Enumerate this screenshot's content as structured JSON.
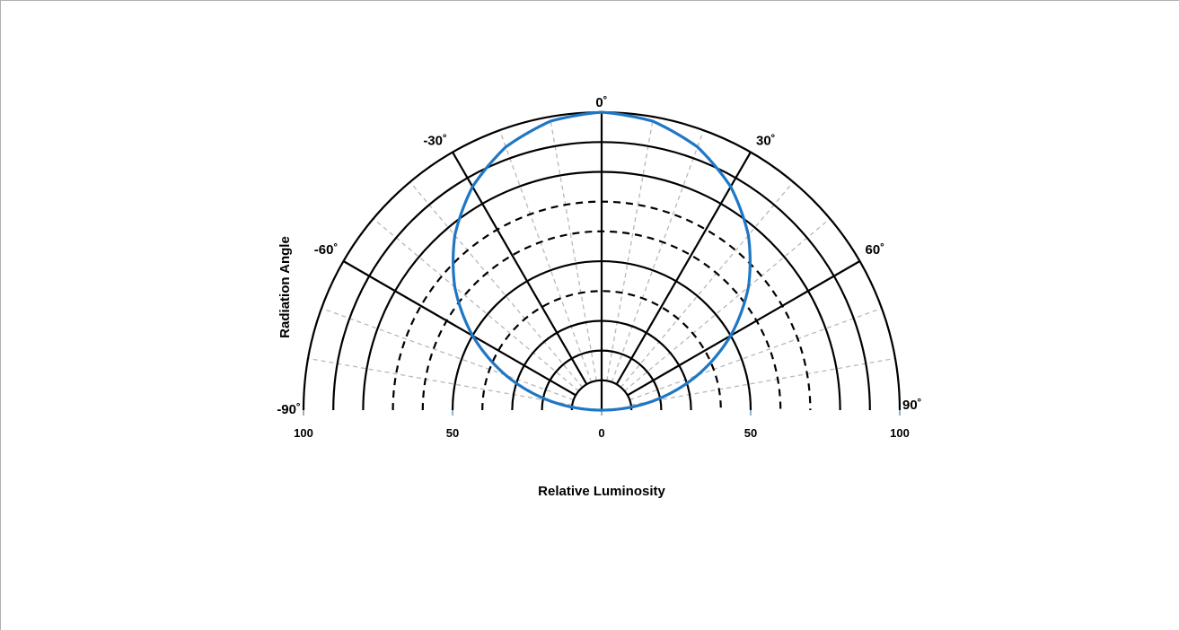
{
  "chart_data": {
    "type": "polar",
    "title": "",
    "xlabel": "Relative Luminosity",
    "ylabel": "Radiation Angle",
    "r_range": [
      0,
      100
    ],
    "angle_range": [
      -90,
      90
    ],
    "angle_labels": [
      "-90˚",
      "-60˚",
      "-30˚",
      "0˚",
      "30˚",
      "60˚",
      "90˚"
    ],
    "angle_ticks": [
      -90,
      -60,
      -30,
      0,
      30,
      60,
      90
    ],
    "radius_tick_labels": [
      "100",
      "50",
      "0",
      "50",
      "100"
    ],
    "radius_tick_values": [
      -100,
      -50,
      0,
      50,
      100
    ],
    "solid_rings": [
      10,
      20,
      30,
      50,
      80,
      90,
      100
    ],
    "dashed_rings": [
      40,
      60,
      70
    ],
    "series": [
      {
        "color": "#1f77c4",
        "angles_deg": [
          -90,
          -80,
          -70,
          -60,
          -50,
          -40,
          -30,
          -20,
          -10,
          0,
          10,
          20,
          30,
          40,
          50,
          60,
          70,
          80,
          90
        ],
        "values": [
          0,
          17.4,
          34.2,
          50,
          64.3,
          76.6,
          86.6,
          94,
          98.5,
          100,
          98.5,
          94,
          86.6,
          76.6,
          64.3,
          50,
          34.2,
          17.4,
          0
        ]
      }
    ],
    "baseline_colors": [
      "#a7d0dc",
      "#7a9bc4"
    ]
  }
}
